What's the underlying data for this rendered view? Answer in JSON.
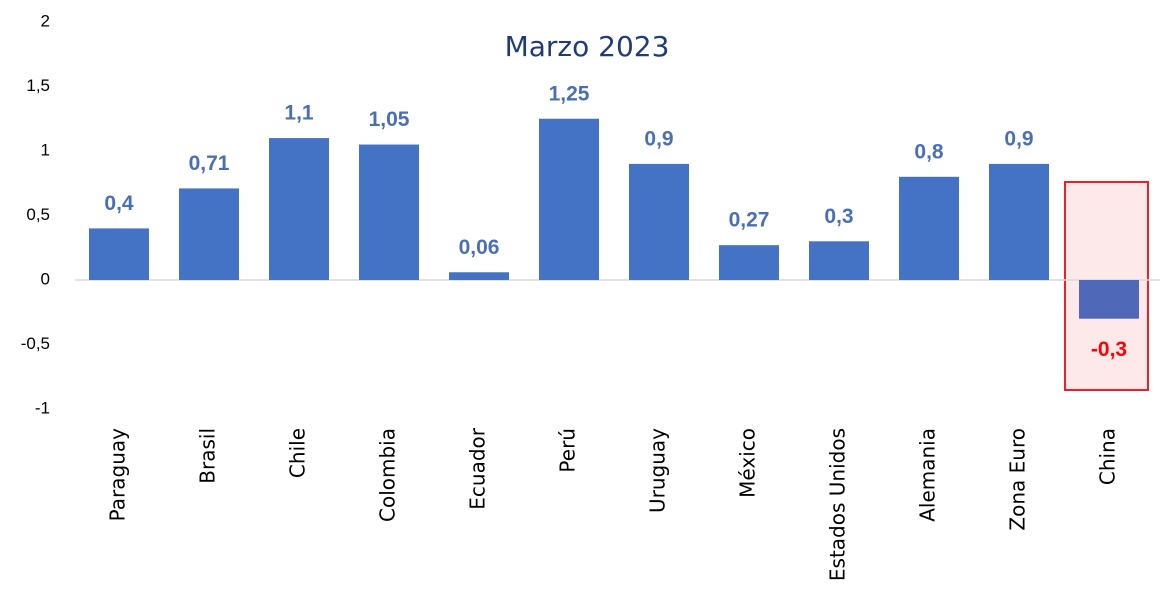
{
  "chart_data": {
    "type": "bar",
    "title": "Marzo 2023",
    "categories": [
      "Paraguay",
      "Brasil",
      "Chile",
      "Colombia",
      "Ecuador",
      "Perú",
      "Uruguay",
      "México",
      "Estados Unidos",
      "Alemania",
      "Zona Euro",
      "China"
    ],
    "values": [
      0.4,
      0.71,
      1.1,
      1.05,
      0.06,
      1.25,
      0.9,
      0.27,
      0.3,
      0.8,
      0.9,
      -0.3
    ],
    "value_labels": [
      "0,4",
      "0,71",
      "1,1",
      "1,05",
      "0,06",
      "1,25",
      "0,9",
      "0,27",
      "0,3",
      "0,8",
      "0,9",
      "-0,3"
    ],
    "colors": [
      "#4472c4",
      "#4472c4",
      "#4472c4",
      "#4472c4",
      "#4472c4",
      "#4472c4",
      "#4472c4",
      "#4472c4",
      "#4472c4",
      "#4472c4",
      "#4472c4",
      "#5068b8"
    ],
    "value_label_colors": [
      "#4a6fb5",
      "#4a6fb5",
      "#4a6fb5",
      "#4a6fb5",
      "#4a6fb5",
      "#4a6fb5",
      "#4a6fb5",
      "#4a6fb5",
      "#4a6fb5",
      "#4a6fb5",
      "#4a6fb5",
      "#ff0000"
    ],
    "ylim": [
      -1,
      2
    ],
    "yticks": [
      -1,
      {
        "value": -0.5,
        "label": "-0,5"
      },
      0,
      {
        "value": 0.5,
        "label": "0,5"
      },
      1,
      {
        "value": 1.5,
        "label": "1,5"
      },
      2
    ],
    "grid": false
  }
}
